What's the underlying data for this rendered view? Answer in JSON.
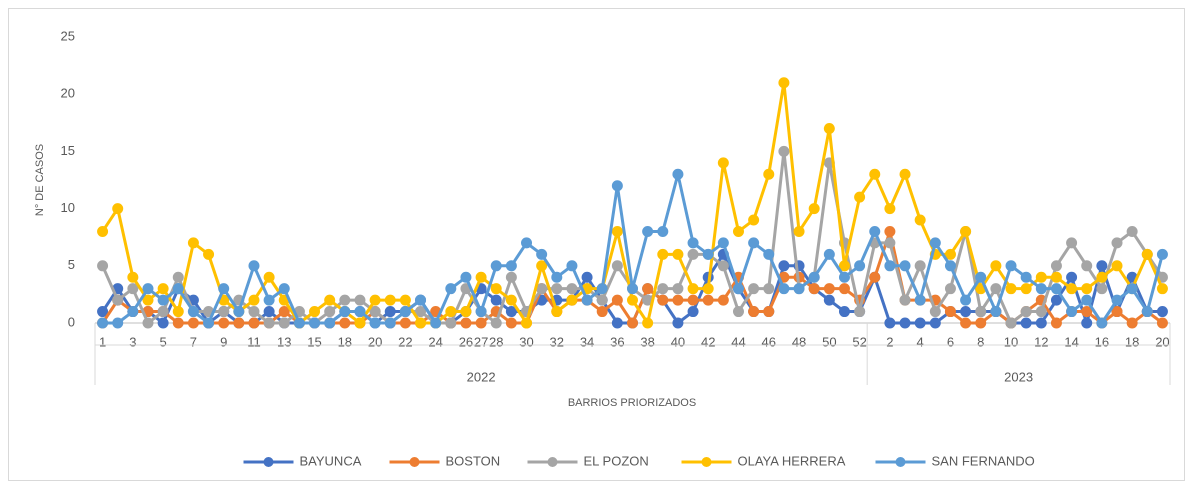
{
  "chart_data": {
    "type": "line",
    "y_axis_label": "N° DE CASOS",
    "x_axis_label": "BARRIOS PRIORIZADOS",
    "categories": [
      "1",
      null,
      "3",
      null,
      "5",
      null,
      "7",
      null,
      "9",
      null,
      "11",
      null,
      "13",
      null,
      "15",
      null,
      "18",
      null,
      "20",
      null,
      "22",
      null,
      "24",
      null,
      "26",
      "27",
      "28",
      null,
      "30",
      null,
      "32",
      null,
      "34",
      null,
      "36",
      null,
      "38",
      null,
      "40",
      null,
      "42",
      null,
      "44",
      null,
      "46",
      null,
      "48",
      null,
      "50",
      null,
      "52",
      null,
      "2",
      null,
      "4",
      null,
      "6",
      null,
      "8",
      null,
      "10",
      null,
      "12",
      null,
      "14",
      null,
      "16",
      null,
      "18",
      null,
      "20"
    ],
    "category_groups": [
      "2022",
      "2022",
      "2022",
      "2022",
      "2022",
      "2022",
      "2022",
      "2022",
      "2022",
      "2022",
      "2022",
      "2022",
      "2022",
      "2022",
      "2022",
      "2022",
      "2022",
      "2022",
      "2022",
      "2022",
      "2022",
      "2022",
      "2022",
      "2022",
      "2022",
      "2022",
      "2022",
      "2022",
      "2022",
      "2022",
      "2022",
      "2022",
      "2022",
      "2022",
      "2022",
      "2022",
      "2022",
      "2022",
      "2022",
      "2022",
      "2022",
      "2022",
      "2022",
      "2022",
      "2022",
      "2022",
      "2022",
      "2022",
      "2022",
      "2022",
      "2022",
      "2023",
      "2023",
      "2023",
      "2023",
      "2023",
      "2023",
      "2023",
      "2023",
      "2023",
      "2023",
      "2023",
      "2023",
      "2023",
      "2023",
      "2023",
      "2023",
      "2023",
      "2023",
      "2023",
      "2023"
    ],
    "ylim": [
      0,
      25
    ],
    "yticks": [
      0,
      5,
      10,
      15,
      20,
      25
    ],
    "grid": false,
    "legend": "bottom",
    "series": [
      {
        "name": "BAYUNCA",
        "color": "#4472c4",
        "values": [
          1,
          3,
          1,
          1,
          0,
          3,
          2,
          0,
          1,
          0,
          0,
          1,
          0,
          0,
          0,
          0,
          1,
          1,
          0,
          1,
          1,
          2,
          0,
          0,
          1,
          3,
          2,
          1,
          1,
          2,
          2,
          2,
          4,
          2,
          0,
          0,
          3,
          2,
          0,
          1,
          4,
          6,
          3,
          1,
          1,
          5,
          5,
          3,
          2,
          1,
          1,
          4,
          0,
          0,
          0,
          0,
          1,
          1,
          1,
          1,
          0,
          0,
          0,
          2,
          4,
          0,
          5,
          1,
          4,
          1,
          1
        ]
      },
      {
        "name": "BOSTON",
        "color": "#ed7d31",
        "values": [
          0,
          2,
          1,
          1,
          1,
          0,
          0,
          0,
          0,
          0,
          0,
          0,
          1,
          0,
          0,
          0,
          0,
          0,
          1,
          0,
          0,
          0,
          1,
          0,
          0,
          0,
          1,
          0,
          0,
          3,
          1,
          2,
          2,
          1,
          2,
          0,
          3,
          2,
          2,
          2,
          2,
          2,
          4,
          1,
          1,
          4,
          4,
          3,
          3,
          3,
          2,
          4,
          8,
          2,
          2,
          2,
          1,
          0,
          0,
          1,
          0,
          1,
          2,
          0,
          1,
          1,
          0,
          1,
          0,
          1,
          0
        ]
      },
      {
        "name": "EL POZON",
        "color": "#a5a5a5",
        "values": [
          5,
          2,
          3,
          0,
          1,
          4,
          1,
          1,
          1,
          2,
          1,
          0,
          0,
          1,
          0,
          1,
          2,
          2,
          1,
          0,
          1,
          1,
          0,
          0,
          3,
          1,
          0,
          4,
          1,
          3,
          3,
          3,
          3,
          2,
          5,
          3,
          2,
          3,
          3,
          6,
          6,
          5,
          1,
          3,
          3,
          15,
          3,
          4,
          14,
          7,
          1,
          7,
          7,
          2,
          5,
          1,
          3,
          8,
          1,
          3,
          0,
          1,
          1,
          5,
          7,
          5,
          3,
          7,
          8,
          6,
          4
        ]
      },
      {
        "name": "OLAYA HERRERA",
        "color": "#ffc000",
        "values": [
          8,
          10,
          4,
          2,
          3,
          1,
          7,
          6,
          2,
          1,
          2,
          4,
          2,
          0,
          1,
          2,
          1,
          0,
          2,
          2,
          2,
          0,
          0,
          1,
          1,
          4,
          3,
          2,
          0,
          5,
          1,
          2,
          3,
          3,
          8,
          2,
          0,
          6,
          6,
          3,
          3,
          14,
          8,
          9,
          13,
          21,
          8,
          10,
          17,
          5,
          11,
          13,
          10,
          13,
          9,
          6,
          6,
          8,
          3,
          5,
          3,
          3,
          4,
          4,
          3,
          3,
          4,
          5,
          3,
          6,
          3
        ]
      },
      {
        "name": "SAN FERNANDO",
        "color": "#5b9bd5",
        "values": [
          0,
          0,
          1,
          3,
          2,
          3,
          1,
          0,
          3,
          1,
          5,
          2,
          3,
          0,
          0,
          0,
          1,
          1,
          0,
          0,
          1,
          2,
          0,
          3,
          4,
          1,
          5,
          5,
          7,
          6,
          4,
          5,
          2,
          3,
          12,
          3,
          8,
          8,
          13,
          7,
          6,
          7,
          3,
          7,
          6,
          3,
          3,
          4,
          6,
          4,
          5,
          8,
          5,
          5,
          2,
          7,
          5,
          2,
          4,
          1,
          5,
          4,
          3,
          3,
          1,
          2,
          0,
          2,
          3,
          1,
          6
        ]
      }
    ]
  }
}
